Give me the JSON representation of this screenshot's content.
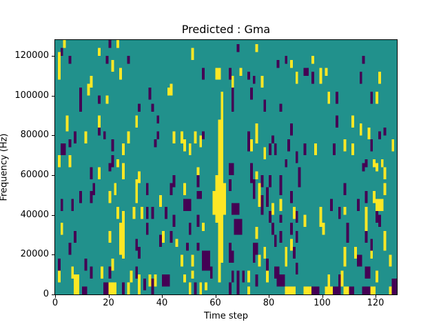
{
  "chart_data": {
    "type": "heatmap",
    "title": "Predicted : Gma",
    "xlabel": "Time step",
    "ylabel": "Frequency (Hz)",
    "x_range": [
      0,
      128
    ],
    "y_range": [
      0,
      128000
    ],
    "x_ticks": [
      0,
      20,
      40,
      60,
      80,
      100,
      120
    ],
    "y_ticks": [
      0,
      20000,
      40000,
      60000,
      80000,
      100000,
      120000
    ],
    "grid_cols": 128,
    "grid_rows": 64,
    "legend": "none",
    "grid": false,
    "colors": {
      "background": "#21918c",
      "yellow_cell": "#fde725",
      "purple_cell": "#440154",
      "axes_text": "#000000",
      "figure_background": "#ffffff"
    },
    "cell_format": "[col, row_from_bottom, height_rows, width_cols(optional, default 1)]",
    "yellow_cells": [
      [
        3,
        62,
        2
      ],
      [
        23,
        62,
        2
      ],
      [
        16,
        60,
        2
      ],
      [
        1,
        54,
        7
      ],
      [
        21,
        56,
        3
      ],
      [
        24,
        54,
        3
      ],
      [
        13,
        52,
        3
      ],
      [
        12,
        50,
        3
      ],
      [
        42,
        50,
        2
      ],
      [
        19,
        48,
        2
      ],
      [
        4,
        41,
        4
      ],
      [
        16,
        42,
        3
      ],
      [
        30,
        42,
        3
      ],
      [
        11,
        38,
        3
      ],
      [
        27,
        38,
        3
      ],
      [
        25,
        35,
        3
      ],
      [
        1,
        32,
        3
      ],
      [
        5,
        32,
        3
      ],
      [
        23,
        32,
        2
      ],
      [
        75,
        61,
        2
      ],
      [
        51,
        59,
        3
      ],
      [
        60,
        54,
        3,
        2
      ],
      [
        69,
        55,
        2
      ],
      [
        66,
        52,
        3
      ],
      [
        77,
        52,
        3
      ],
      [
        43,
        50,
        3
      ],
      [
        44,
        38,
        3
      ],
      [
        47,
        38,
        3
      ],
      [
        52,
        38,
        3
      ],
      [
        54,
        37,
        3
      ],
      [
        48,
        36,
        3
      ],
      [
        50,
        35,
        3
      ],
      [
        73,
        36,
        3
      ],
      [
        75,
        38,
        5
      ],
      [
        78,
        34,
        3
      ],
      [
        96,
        58,
        2
      ],
      [
        88,
        57,
        2
      ],
      [
        99,
        53,
        4
      ],
      [
        101,
        55,
        2
      ],
      [
        90,
        53,
        3
      ],
      [
        121,
        53,
        3
      ],
      [
        102,
        48,
        3
      ],
      [
        120,
        48,
        3
      ],
      [
        111,
        42,
        3
      ],
      [
        114,
        40,
        3
      ],
      [
        117,
        39,
        3
      ],
      [
        108,
        36,
        3
      ],
      [
        126,
        36,
        3
      ],
      [
        97,
        35,
        3
      ],
      [
        111,
        35,
        3
      ],
      [
        119,
        32,
        2
      ],
      [
        122,
        32,
        2
      ],
      [
        16,
        29,
        3
      ],
      [
        25,
        29,
        4
      ],
      [
        22,
        25,
        3
      ],
      [
        30,
        26,
        3
      ],
      [
        31,
        28,
        3
      ],
      [
        20,
        23,
        3
      ],
      [
        30,
        23,
        3
      ],
      [
        39,
        22,
        3
      ],
      [
        25,
        9,
        12
      ],
      [
        24,
        10,
        8
      ],
      [
        23,
        19,
        3
      ],
      [
        29,
        19,
        3
      ],
      [
        32,
        19,
        3
      ],
      [
        2,
        15,
        3
      ],
      [
        20,
        13,
        3
      ],
      [
        40,
        13,
        3
      ],
      [
        21,
        6,
        3
      ],
      [
        6,
        4,
        3
      ],
      [
        17,
        4,
        3
      ],
      [
        1,
        3,
        3
      ],
      [
        28,
        3,
        3
      ],
      [
        7,
        0,
        5,
        2
      ],
      [
        20,
        0,
        3,
        3
      ],
      [
        27,
        0,
        3
      ],
      [
        31,
        0,
        5
      ],
      [
        35,
        2,
        3
      ],
      [
        37,
        2,
        3
      ],
      [
        53,
        30,
        2
      ],
      [
        48,
        25,
        3
      ],
      [
        55,
        16,
        2
      ],
      [
        45,
        12,
        2
      ],
      [
        47,
        7,
        3
      ],
      [
        51,
        7,
        3
      ],
      [
        51,
        4,
        2
      ],
      [
        48,
        3,
        2
      ],
      [
        50,
        0,
        3
      ],
      [
        54,
        0,
        3
      ],
      [
        56,
        1,
        2
      ],
      [
        63,
        25,
        3
      ],
      [
        75,
        29,
        2
      ],
      [
        76,
        25,
        3
      ],
      [
        76,
        22,
        3
      ],
      [
        81,
        20,
        3
      ],
      [
        84,
        21,
        3
      ],
      [
        75,
        14,
        3
      ],
      [
        78,
        9,
        3
      ],
      [
        76,
        7,
        3
      ],
      [
        72,
        3,
        3
      ],
      [
        79,
        3,
        3
      ],
      [
        72,
        0,
        2
      ],
      [
        62,
        44,
        7
      ],
      [
        61,
        30,
        14,
        2
      ],
      [
        60,
        18,
        12,
        3
      ],
      [
        59,
        20,
        6
      ],
      [
        63,
        20,
        6
      ],
      [
        61,
        8,
        10,
        2
      ],
      [
        61,
        3,
        5
      ],
      [
        120,
        31,
        2
      ],
      [
        123,
        29,
        3
      ],
      [
        123,
        25,
        3
      ],
      [
        119,
        23,
        3
      ],
      [
        120,
        21,
        3,
        3
      ],
      [
        89,
        19,
        3
      ],
      [
        93,
        17,
        3
      ],
      [
        99,
        17,
        5
      ],
      [
        108,
        20,
        2
      ],
      [
        116,
        15,
        7
      ],
      [
        100,
        15,
        3
      ],
      [
        123,
        11,
        5
      ],
      [
        88,
        11,
        3
      ],
      [
        86,
        9,
        3
      ],
      [
        112,
        9,
        3
      ],
      [
        108,
        7,
        5
      ],
      [
        118,
        9,
        3
      ],
      [
        86,
        7,
        3
      ],
      [
        125,
        7,
        3
      ],
      [
        107,
        2,
        4
      ],
      [
        102,
        2,
        3
      ],
      [
        120,
        3,
        3
      ],
      [
        86,
        0,
        2,
        4
      ],
      [
        93,
        0,
        2,
        3
      ],
      [
        101,
        0,
        2,
        3
      ],
      [
        108,
        0,
        2,
        2
      ],
      [
        118,
        0,
        2,
        2
      ],
      [
        125,
        0,
        2
      ]
    ],
    "purple_cells": [
      [
        20,
        62,
        2
      ],
      [
        2,
        60,
        2
      ],
      [
        5,
        58,
        2
      ],
      [
        19,
        58,
        2
      ],
      [
        27,
        58,
        2
      ],
      [
        9,
        49,
        3
      ],
      [
        35,
        49,
        3
      ],
      [
        16,
        48,
        2
      ],
      [
        9,
        46,
        3
      ],
      [
        31,
        46,
        2
      ],
      [
        36,
        46,
        2
      ],
      [
        38,
        43,
        2
      ],
      [
        16,
        40,
        2
      ],
      [
        18,
        39,
        2
      ],
      [
        7,
        38,
        3
      ],
      [
        5,
        37,
        2
      ],
      [
        38,
        39,
        2
      ],
      [
        37,
        37,
        2
      ],
      [
        21,
        36,
        3
      ],
      [
        2,
        35,
        3,
        2
      ],
      [
        21,
        32,
        3
      ],
      [
        68,
        61,
        2
      ],
      [
        55,
        54,
        3
      ],
      [
        65,
        54,
        3
      ],
      [
        72,
        54,
        2
      ],
      [
        83,
        57,
        2
      ],
      [
        74,
        53,
        2
      ],
      [
        66,
        46,
        6
      ],
      [
        73,
        49,
        3
      ],
      [
        78,
        46,
        3
      ],
      [
        84,
        46,
        2
      ],
      [
        55,
        39,
        2
      ],
      [
        72,
        38,
        3
      ],
      [
        72,
        36,
        3
      ],
      [
        80,
        35,
        3
      ],
      [
        82,
        35,
        3
      ],
      [
        81,
        38,
        2
      ],
      [
        86,
        58,
        2
      ],
      [
        115,
        58,
        2
      ],
      [
        93,
        55,
        2,
        2
      ],
      [
        96,
        53,
        3
      ],
      [
        114,
        53,
        3
      ],
      [
        105,
        48,
        3
      ],
      [
        118,
        48,
        3
      ],
      [
        105,
        42,
        3
      ],
      [
        88,
        40,
        3
      ],
      [
        123,
        40,
        2
      ],
      [
        121,
        39,
        2
      ],
      [
        87,
        36,
        3
      ],
      [
        118,
        36,
        3
      ],
      [
        93,
        35,
        3
      ],
      [
        104,
        35,
        3
      ],
      [
        90,
        33,
        3
      ],
      [
        116,
        32,
        2
      ],
      [
        86,
        32,
        2
      ],
      [
        13,
        29,
        3
      ],
      [
        20,
        31,
        2
      ],
      [
        14,
        25,
        3
      ],
      [
        34,
        25,
        3
      ],
      [
        9,
        23,
        3
      ],
      [
        13,
        23,
        3
      ],
      [
        2,
        21,
        3
      ],
      [
        6,
        21,
        3
      ],
      [
        34,
        19,
        3
      ],
      [
        36,
        19,
        3
      ],
      [
        41,
        19,
        3
      ],
      [
        7,
        13,
        3
      ],
      [
        34,
        15,
        3
      ],
      [
        39,
        12,
        3
      ],
      [
        30,
        11,
        3
      ],
      [
        31,
        9,
        3
      ],
      [
        5,
        10,
        3
      ],
      [
        1,
        6,
        3
      ],
      [
        11,
        6,
        3
      ],
      [
        13,
        4,
        3
      ],
      [
        20,
        4,
        3
      ],
      [
        30,
        4,
        3
      ],
      [
        18,
        0,
        3,
        2
      ],
      [
        25,
        0,
        3
      ],
      [
        33,
        1,
        3
      ],
      [
        36,
        0,
        4
      ],
      [
        40,
        2,
        3,
        3
      ],
      [
        10,
        0,
        2,
        2
      ],
      [
        44,
        27,
        3
      ],
      [
        43,
        25,
        3
      ],
      [
        53,
        27,
        3
      ],
      [
        53,
        24,
        2,
        2
      ],
      [
        48,
        21,
        3,
        3
      ],
      [
        44,
        17,
        3
      ],
      [
        50,
        15,
        3
      ],
      [
        53,
        17,
        3
      ],
      [
        43,
        13,
        3
      ],
      [
        49,
        11,
        2
      ],
      [
        53,
        11,
        2
      ],
      [
        55,
        6,
        5,
        3
      ],
      [
        58,
        4,
        3
      ],
      [
        52,
        0,
        3
      ],
      [
        65,
        30,
        3,
        2
      ],
      [
        65,
        26,
        3
      ],
      [
        66,
        20,
        3,
        3
      ],
      [
        67,
        15,
        4,
        3
      ],
      [
        65,
        10,
        3
      ],
      [
        65,
        8,
        3,
        2
      ],
      [
        66,
        3,
        3
      ],
      [
        68,
        3,
        3
      ],
      [
        70,
        3,
        3
      ],
      [
        73,
        28,
        5
      ],
      [
        74,
        24,
        5
      ],
      [
        77,
        27,
        3
      ],
      [
        80,
        27,
        3
      ],
      [
        79,
        22,
        5
      ],
      [
        77,
        20,
        5
      ],
      [
        80,
        18,
        3
      ],
      [
        81,
        15,
        3
      ],
      [
        84,
        27,
        3
      ],
      [
        84,
        25,
        2
      ],
      [
        84,
        18,
        2
      ],
      [
        84,
        13,
        3
      ],
      [
        74,
        10,
        3,
        2
      ],
      [
        74,
        8,
        3
      ],
      [
        79,
        6,
        3
      ],
      [
        82,
        12,
        3
      ],
      [
        82,
        4,
        3,
        2
      ],
      [
        83,
        2,
        3,
        3
      ],
      [
        75,
        2,
        3
      ],
      [
        65,
        0,
        3
      ],
      [
        68,
        0,
        3
      ],
      [
        91,
        27,
        5
      ],
      [
        115,
        31,
        2
      ],
      [
        108,
        25,
        3
      ],
      [
        88,
        23,
        3
      ],
      [
        116,
        23,
        3
      ],
      [
        103,
        21,
        3
      ],
      [
        113,
        21,
        3
      ],
      [
        106,
        19,
        3
      ],
      [
        120,
        18,
        3
      ],
      [
        121,
        17,
        3
      ],
      [
        90,
        18,
        3
      ],
      [
        88,
        15,
        3
      ],
      [
        90,
        13,
        3
      ],
      [
        109,
        13,
        5
      ],
      [
        116,
        13,
        3
      ],
      [
        118,
        11,
        3
      ],
      [
        89,
        9,
        3
      ],
      [
        113,
        7,
        3
      ],
      [
        114,
        7,
        3
      ],
      [
        90,
        5,
        3
      ],
      [
        116,
        4,
        3,
        2
      ],
      [
        106,
        2,
        3
      ],
      [
        96,
        0,
        2,
        3
      ],
      [
        104,
        0,
        2,
        3
      ],
      [
        110,
        0,
        2,
        2
      ],
      [
        115,
        0,
        2,
        3
      ],
      [
        126,
        0,
        4,
        2
      ]
    ]
  }
}
